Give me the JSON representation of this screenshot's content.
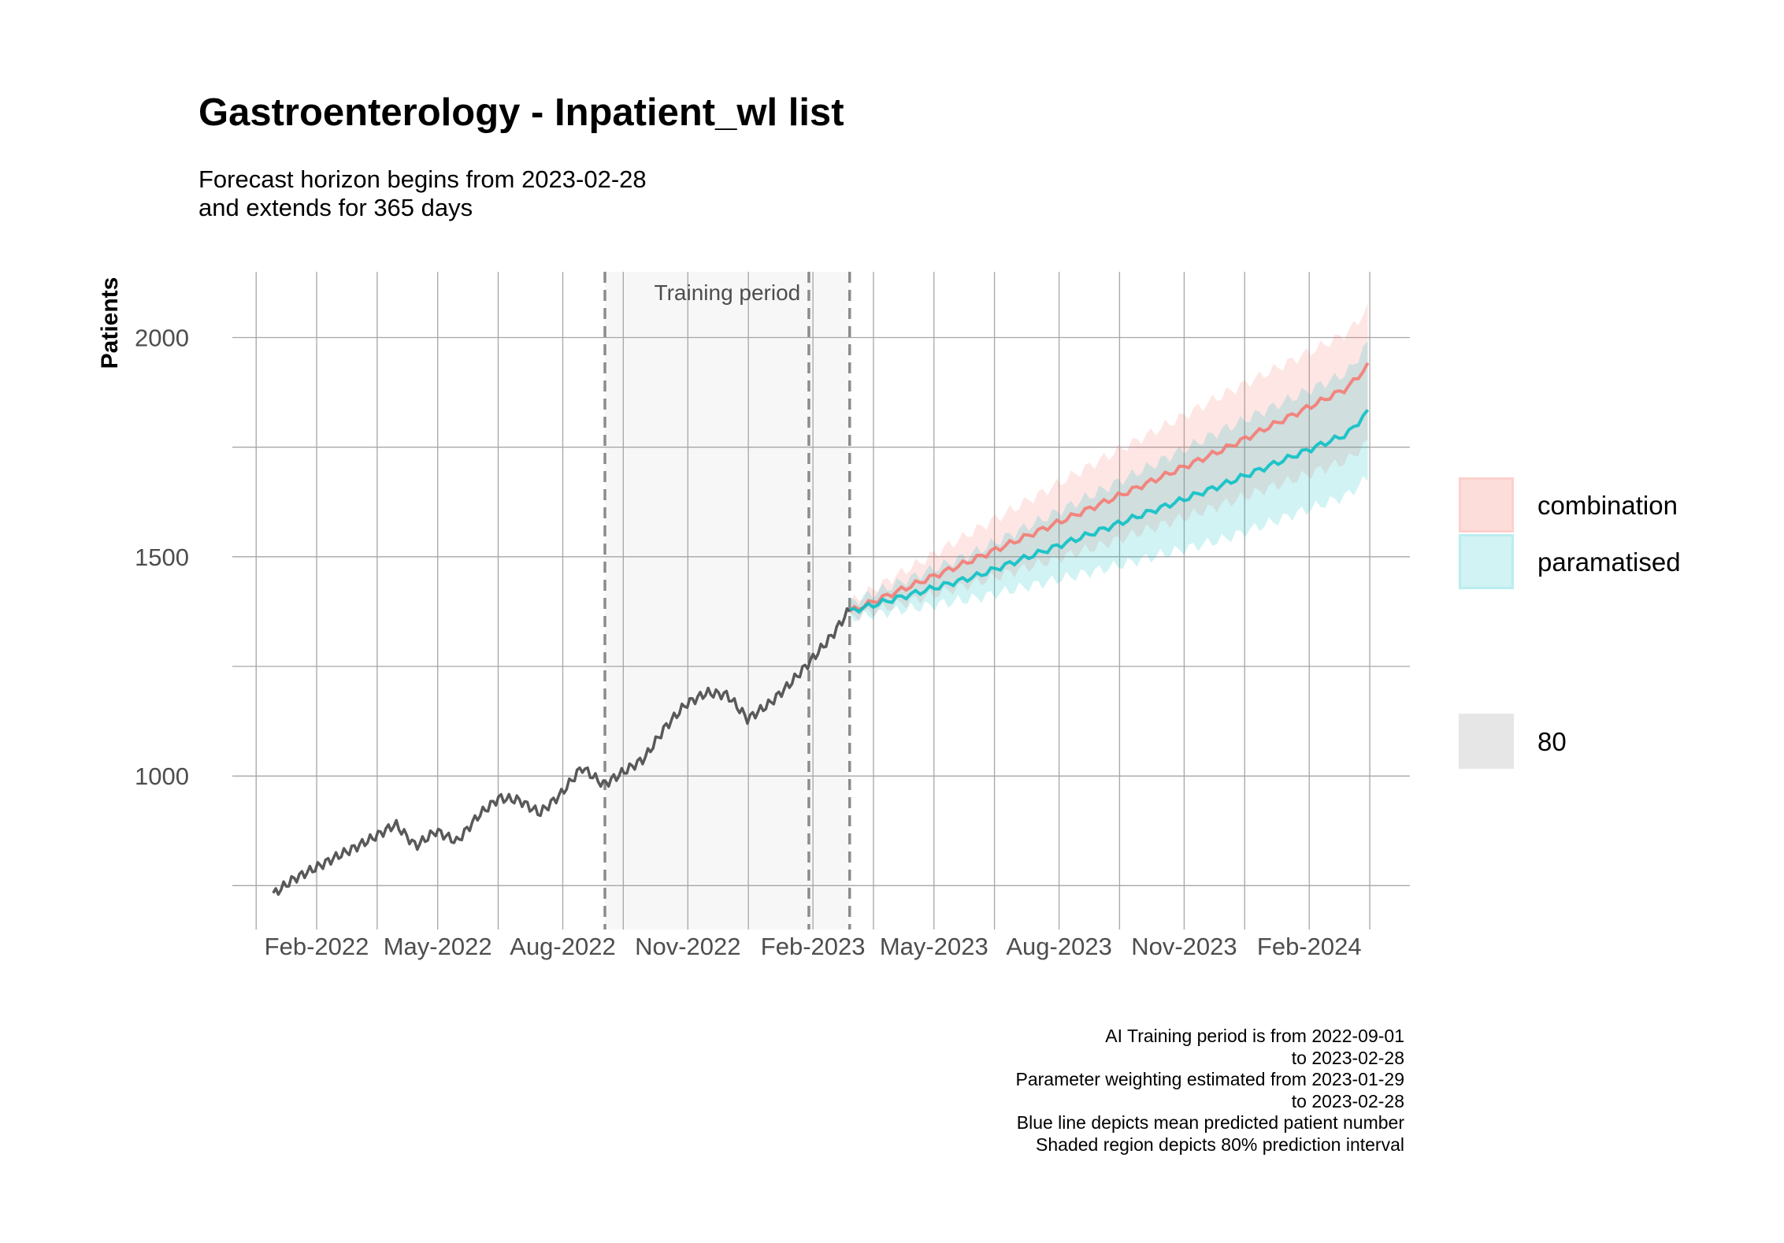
{
  "title": "Gastroenterology - Inpatient_wl list",
  "subtitle_lines": [
    "Forecast horizon begins from 2023-02-28",
    "and extends for 365 days"
  ],
  "caption_lines": [
    "AI Training period is from 2022-09-01",
    "to 2023-02-28",
    "Parameter weighting estimated from 2023-01-29",
    "to 2023-02-28",
    "Blue line depicts mean predicted patient number",
    "Shaded region depicts 80% prediction interval"
  ],
  "legend": {
    "items": [
      {
        "label": "combination",
        "color": "#f8766d"
      },
      {
        "label": "paramatised",
        "color": "#00bfc4"
      }
    ],
    "interval_label": "80",
    "interval_color": "#e6e6e6"
  },
  "chart_data": {
    "type": "line",
    "title": "Gastroenterology - Inpatient_wl list",
    "ylabel": "Patients",
    "xlabel": "",
    "ylim": [
      650,
      2150
    ],
    "xlim": [
      "2021-12-01",
      "2024-04-15"
    ],
    "y_ticks": [
      1000,
      1500,
      2000
    ],
    "x_ticks": [
      "Feb-2022",
      "May-2022",
      "Aug-2022",
      "Nov-2022",
      "Feb-2023",
      "May-2023",
      "Aug-2023",
      "Nov-2023",
      "Feb-2024"
    ],
    "grid": true,
    "legend_position": "right",
    "annotations": [
      {
        "text": "Training period",
        "from": "2022-09-01",
        "to": "2023-02-28"
      },
      {
        "text": "",
        "from": "2023-01-29",
        "to": "2023-01-29"
      }
    ],
    "observed": {
      "color": "#595959",
      "x": [
        "2021-12-31",
        "2022-01-15",
        "2022-01-31",
        "2022-02-15",
        "2022-02-28",
        "2022-03-15",
        "2022-03-31",
        "2022-04-15",
        "2022-04-30",
        "2022-05-15",
        "2022-05-31",
        "2022-06-15",
        "2022-06-30",
        "2022-07-15",
        "2022-07-31",
        "2022-08-15",
        "2022-08-31",
        "2022-09-15",
        "2022-09-30",
        "2022-10-15",
        "2022-10-31",
        "2022-11-15",
        "2022-11-30",
        "2022-12-15",
        "2022-12-31",
        "2023-01-15",
        "2023-01-31",
        "2023-02-15",
        "2023-02-28"
      ],
      "y": [
        730,
        765,
        790,
        815,
        835,
        860,
        890,
        840,
        875,
        850,
        910,
        950,
        945,
        915,
        960,
        1020,
        980,
        1010,
        1040,
        1110,
        1165,
        1190,
        1185,
        1130,
        1165,
        1210,
        1265,
        1320,
        1380
      ]
    },
    "series": [
      {
        "name": "combination",
        "color": "#f8766d",
        "x": [
          "2023-02-28",
          "2023-05-31",
          "2023-08-31",
          "2023-11-30",
          "2024-02-29",
          "2024-03-15"
        ],
        "y": [
          1375,
          1495,
          1620,
          1745,
          1885,
          1935
        ],
        "lower": [
          1360,
          1440,
          1525,
          1620,
          1720,
          1760
        ],
        "upper": [
          1395,
          1560,
          1720,
          1870,
          2010,
          2065
        ]
      },
      {
        "name": "paramatised",
        "color": "#00bfc4",
        "x": [
          "2023-02-28",
          "2023-05-31",
          "2023-08-31",
          "2023-11-30",
          "2024-02-29",
          "2024-03-15"
        ],
        "y": [
          1375,
          1455,
          1560,
          1665,
          1780,
          1830
        ],
        "lower": [
          1360,
          1405,
          1470,
          1540,
          1640,
          1680
        ],
        "upper": [
          1395,
          1510,
          1650,
          1790,
          1920,
          1985
        ]
      }
    ]
  }
}
